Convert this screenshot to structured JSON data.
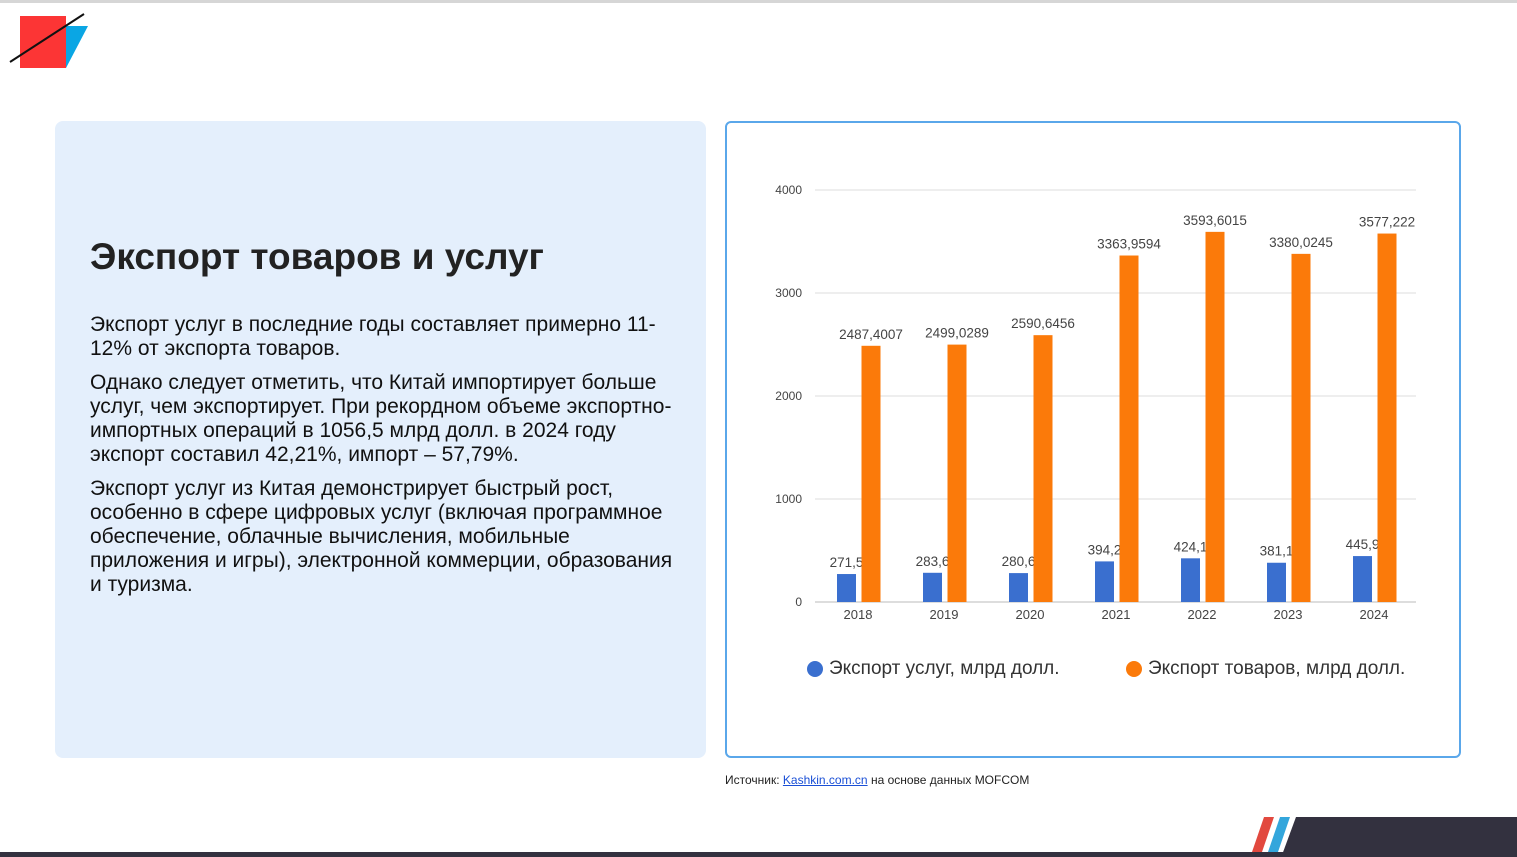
{
  "title": "Экспорт товаров и услуг",
  "paragraphs": [
    "Экспорт услуг в последние годы составляет примерно 11-12% от экспорта товаров.",
    "Однако следует отметить, что Китай импортирует больше услуг, чем экспортирует. При рекордном объеме экспортно-импортных операций в 1056,5 млрд долл. в 2024 году экспорт составил 42,21%, импорт – 57,79%.",
    "Экспорт услуг из Китая демонстрирует быстрый рост, особенно в сфере цифровых услуг (включая программное обеспечение, облачные вычисления, мобильные приложения и игры), электронной коммерции, образования и туризма."
  ],
  "source": {
    "prefix": "Источник: ",
    "link": "Kashkin.com.cn",
    "suffix": " на основе данных MOFCOM"
  },
  "chart_data": {
    "type": "bar",
    "categories": [
      "2018",
      "2019",
      "2020",
      "2021",
      "2022",
      "2023",
      "2024"
    ],
    "series": [
      {
        "name": "Экспорт услуг, млрд долл.",
        "color": "#3a6fcf",
        "values": [
          271.5,
          283.6,
          280.6,
          394.2,
          424.1,
          381.1,
          445.9
        ],
        "labels": [
          "271,5",
          "283,6",
          "280,6",
          "394,2",
          "424,1",
          "381,1",
          "445,9"
        ]
      },
      {
        "name": "Экспорт товаров, млрд долл.",
        "color": "#fb7a0a",
        "values": [
          2487.4007,
          2499.0289,
          2590.6456,
          3363.9594,
          3593.6015,
          3380.0245,
          3577.222
        ],
        "labels": [
          "2487,4007",
          "2499,0289",
          "2590,6456",
          "3363,9594",
          "3593,6015",
          "3380,0245",
          "3577,222"
        ]
      }
    ],
    "yticks": [
      "0",
      "1000",
      "2000",
      "3000",
      "4000"
    ],
    "ylim": [
      0,
      4000
    ],
    "grid": true,
    "legend": "bottom"
  }
}
